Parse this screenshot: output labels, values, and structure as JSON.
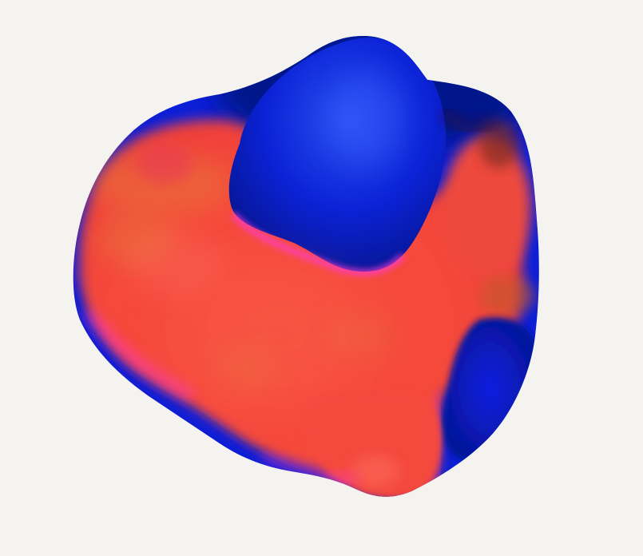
{
  "scene": {
    "subject": "abstract-3d-blob-render",
    "colors": {
      "background": "#f5f3ef",
      "deep_blue": "#0a1fd8",
      "navy": "#05148a",
      "blue_highlight": "#2a4cf0",
      "red": "#f44a3c",
      "red_highlight": "#fb6a5a",
      "orange": "#e8743a",
      "magenta_edge": "#ff3ad8",
      "dark_edge": "#3a1020"
    }
  }
}
